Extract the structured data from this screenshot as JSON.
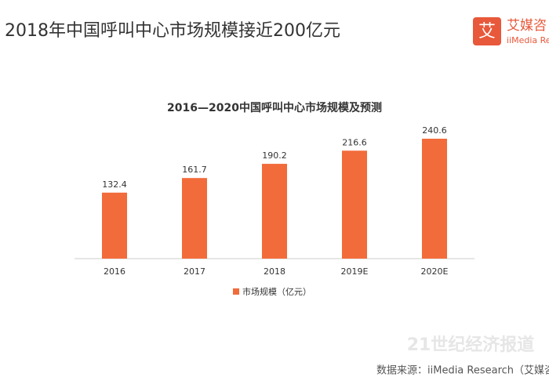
{
  "header": {
    "title": "2018年中国呼叫中心市场规模接近200亿元",
    "logo_mark": "艾",
    "logo_name": "艾媒咨",
    "logo_sub": "iiMedia Resea"
  },
  "chart_data": {
    "type": "bar",
    "title": "2016—2020中国呼叫中心市场规模及预测",
    "categories": [
      "2016",
      "2017",
      "2018",
      "2019E",
      "2020E"
    ],
    "series": [
      {
        "name": "市场规模（亿元）",
        "color": "#f26b3a",
        "values": [
          132.4,
          161.7,
          190.2,
          216.6,
          240.6
        ]
      }
    ]
  },
  "footer": {
    "watermark": "21世纪经济报道",
    "source": "数据来源：iiMedia Research（艾媒咨"
  }
}
